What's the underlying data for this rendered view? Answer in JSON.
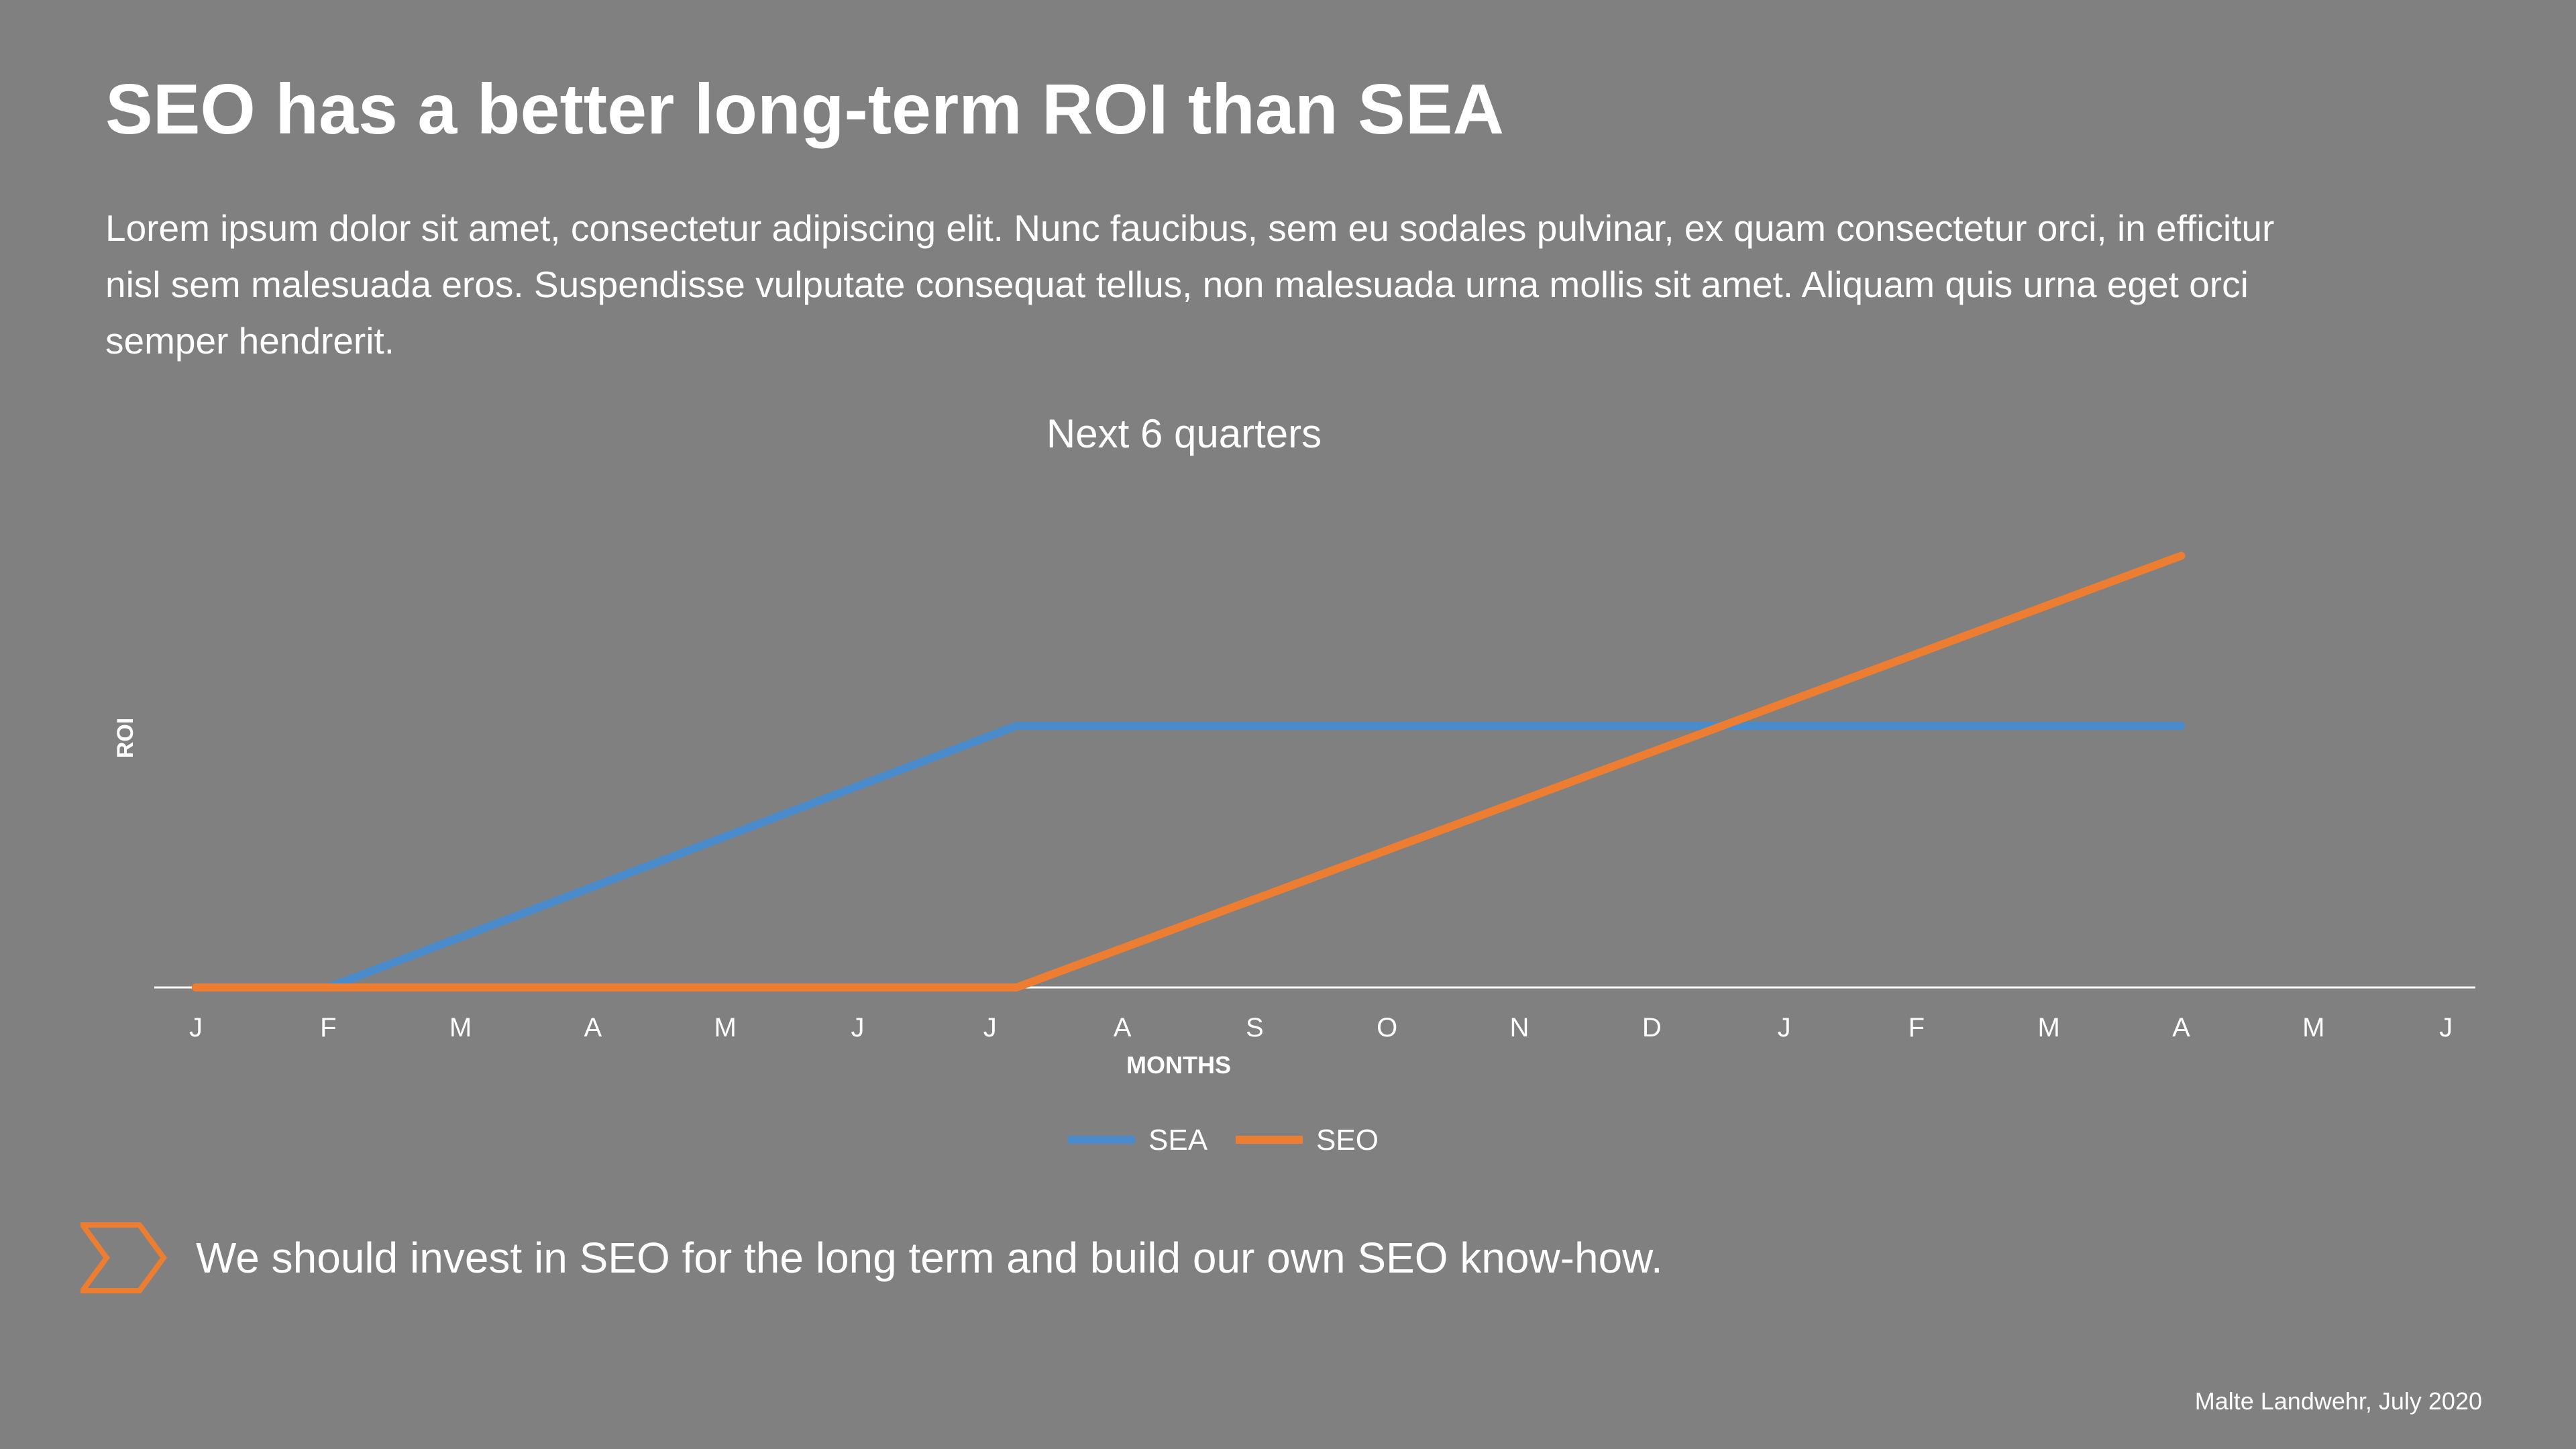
{
  "slide": {
    "title": "SEO has a better long-term ROI than SEA",
    "body": "Lorem ipsum dolor sit amet, consectetur adipiscing elit. Nunc faucibus, sem eu sodales pulvinar, ex quam consectetur orci, in efficitur nisl sem malesuada eros. Suspendisse vulputate consequat tellus, non malesuada urna mollis sit amet. Aliquam quis urna eget orci semper hendrerit.",
    "conclusion": "We should invest in SEO for the long term and build our own SEO know-how.",
    "footer": "Malte Landwehr, July 2020",
    "conclusion_icon": "chevron-right-icon",
    "accent_color": "#ED7D31",
    "background_color": "#808080"
  },
  "chart_data": {
    "type": "line",
    "title": "Next 6 quarters",
    "xlabel": "MONTHS",
    "ylabel": "ROI",
    "categories": [
      "J",
      "F",
      "M",
      "A",
      "M",
      "J",
      "J",
      "A",
      "S",
      "O",
      "N",
      "D",
      "J",
      "F",
      "M",
      "A",
      "M",
      "J"
    ],
    "series": [
      {
        "name": "SEA",
        "color": "#4A8CCB",
        "points": [
          [
            0,
            0
          ],
          [
            1,
            0
          ],
          [
            6.2,
            1
          ],
          [
            15,
            1
          ]
        ]
      },
      {
        "name": "SEO",
        "color": "#ED7D31",
        "points": [
          [
            0,
            0
          ],
          [
            6.2,
            0
          ],
          [
            15,
            1.65
          ]
        ]
      }
    ],
    "ylim": [
      0,
      1.9
    ],
    "grid": false,
    "legend_position": "bottom"
  }
}
